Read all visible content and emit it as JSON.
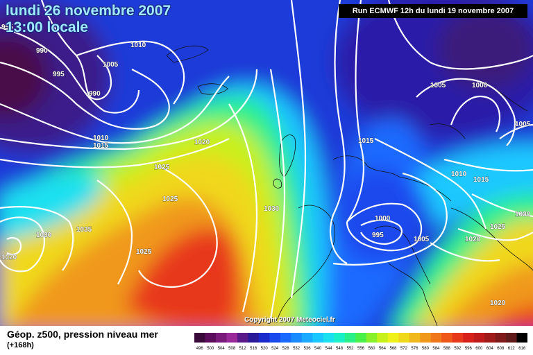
{
  "header": {
    "date_line": "lundi 26 novembre 2007",
    "time_line": "13:00 locale",
    "run_info": "Run ECMWF 12h du lundi 19 novembre 2007"
  },
  "footer": {
    "title": "Géop. z500, pression niveau mer",
    "subtitle": "(+168h)",
    "copyright": "Copyright 2007 Meteociel.fr"
  },
  "legend": {
    "values": [
      "496",
      "500",
      "504",
      "508",
      "512",
      "516",
      "520",
      "524",
      "528",
      "532",
      "536",
      "540",
      "544",
      "548",
      "552",
      "556",
      "560",
      "564",
      "568",
      "572",
      "576",
      "580",
      "584",
      "588",
      "592",
      "596",
      "600",
      "604",
      "608",
      "612",
      "616"
    ],
    "colors": [
      "#3a0a3a",
      "#5c0e5c",
      "#7a1a7a",
      "#9a2a9a",
      "#5a1a8a",
      "#2a1a9a",
      "#1a2acc",
      "#1a4aee",
      "#1a6aff",
      "#1a8aff",
      "#1aaaff",
      "#1ac8ff",
      "#1ae0f0",
      "#1af0c8",
      "#2af08a",
      "#4af04a",
      "#8af02a",
      "#c8f01a",
      "#f0f01a",
      "#f0d81a",
      "#f0b81a",
      "#f0981a",
      "#f0781a",
      "#f0581a",
      "#e8381a",
      "#d8201a",
      "#c01a1a",
      "#a01a1a",
      "#801a1a",
      "#601a1a",
      "#000000"
    ]
  },
  "isobar_labels": [
    "955",
    "990",
    "995",
    "1005",
    "1010",
    "990",
    "1010",
    "1015",
    "1020",
    "1025",
    "1025",
    "1030",
    "1035",
    "1030",
    "1020",
    "1025",
    "1015",
    "1005",
    "1000",
    "1005",
    "1010",
    "1015",
    "1000",
    "995",
    "1005",
    "1020",
    "1025",
    "1030",
    "1020"
  ]
}
